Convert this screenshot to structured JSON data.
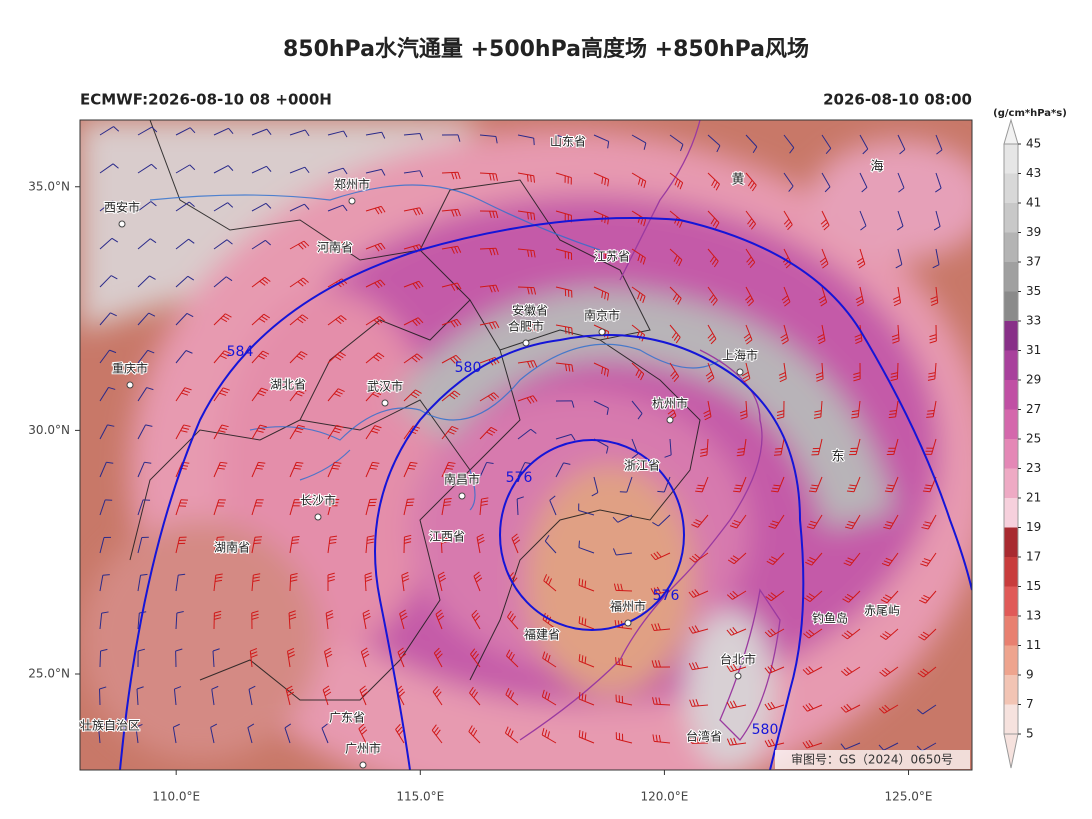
{
  "title": "850hPa水汽通量 +500hPa高度场 +850hPa风场",
  "subtitle_left": "ECMWF:2026-08-10 08 +000H",
  "subtitle_right": "2026-08-10 08:00",
  "map": {
    "lonlim": [
      108.03,
      126.3
    ],
    "latlim": [
      23.03,
      36.37
    ],
    "xticks": [
      {
        "value": 110,
        "label": "110.0°E"
      },
      {
        "value": 115,
        "label": "115.0°E"
      },
      {
        "value": 120,
        "label": "120.0°E"
      },
      {
        "value": 125,
        "label": "125.0°E"
      }
    ],
    "yticks": [
      {
        "value": 35,
        "label": "35.0°N"
      },
      {
        "value": 30,
        "label": "30.0°N"
      },
      {
        "value": 25,
        "label": "25.0°N"
      }
    ],
    "places": [
      "山东省",
      "郑州市",
      "西安市",
      "河南省",
      "江苏省",
      "安徽省",
      "合肥市",
      "南京市",
      "上海市",
      "湖北省",
      "武汉市",
      "杭州市",
      "浙江省",
      "长沙市",
      "南昌市",
      "江西省",
      "湖南省",
      "福州市",
      "福建省",
      "台北市",
      "台湾省",
      "广东省",
      "广州市",
      "钓鱼岛",
      "赤尾屿",
      "重庆市",
      "黄",
      "海",
      "东",
      "壮族自治区"
    ],
    "contour_labels": [
      "584",
      "580",
      "576",
      "576",
      "580"
    ],
    "credit": "审图号：GS（2024）0650号"
  },
  "colorbar": {
    "unit": "(g/cm*hPa*s)",
    "levels": [
      5,
      7,
      9,
      11,
      13,
      15,
      17,
      19,
      21,
      23,
      25,
      27,
      29,
      31,
      33,
      35,
      37,
      39,
      41,
      43,
      45
    ],
    "colors": [
      "#f6e2de",
      "#f2c4b4",
      "#eea48e",
      "#e88070",
      "#e05a58",
      "#c83c3c",
      "#a82a30",
      "#f6d0dc",
      "#eeaac4",
      "#e488b6",
      "#d468ac",
      "#c050a4",
      "#a8409c",
      "#883088",
      "#8a8a8a",
      "#a0a0a0",
      "#b4b4b4",
      "#c8c8c8",
      "#d8d8d8",
      "#e6e6e6",
      "#f2f2f2"
    ]
  }
}
